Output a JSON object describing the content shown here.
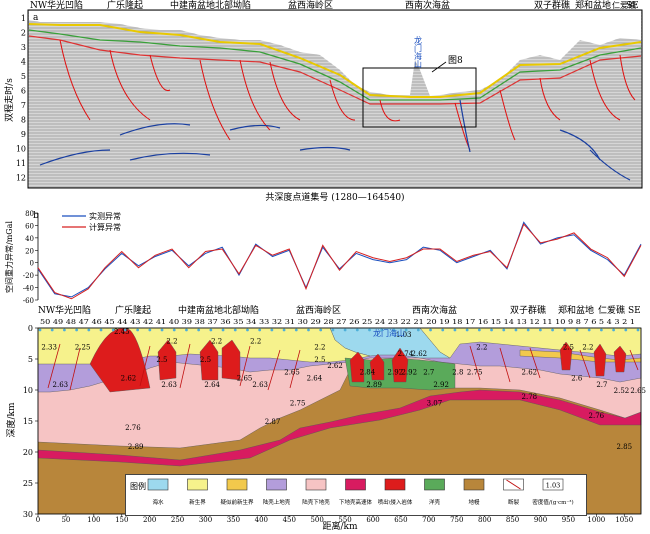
{
  "panel_a": {
    "label": "a",
    "title_nw": "NW",
    "title_se": "SE",
    "regions": [
      "华光凹陷",
      "广乐隆起",
      "中建南盆地北部坳陷",
      "盆西海岭区",
      "西南次海盆",
      "双子群礁",
      "郑和盆地",
      "仁爱礁"
    ],
    "ylabel": "双程走时/s",
    "yticks": [
      "1",
      "2",
      "3",
      "4",
      "5",
      "6",
      "7",
      "8",
      "9",
      "10",
      "11",
      "12"
    ],
    "xlabel": "共深度点道集号 (1280—164540)",
    "seamount_label": "龙门海山",
    "figure_ref": "图8"
  },
  "chart_data": [
    {
      "type": "line",
      "title": "",
      "xlabel": "",
      "ylabel": "空间重力异常/mGal",
      "ylim": [
        -60,
        80
      ],
      "yticks": [
        "80",
        "60",
        "40",
        "20",
        "0",
        "-20",
        "-40",
        "-60"
      ],
      "x": [
        0,
        30,
        60,
        90,
        120,
        150,
        180,
        210,
        240,
        270,
        300,
        330,
        360,
        390,
        420,
        450,
        480,
        510,
        540,
        570,
        600,
        630,
        660,
        690,
        720,
        750,
        780,
        810,
        840,
        870,
        900,
        930,
        960,
        990,
        1020,
        1050,
        1080
      ],
      "series": [
        {
          "name": "实测异常",
          "values": [
            -10,
            -50,
            -55,
            -40,
            -10,
            15,
            -5,
            10,
            20,
            -5,
            15,
            25,
            -20,
            30,
            10,
            20,
            -40,
            25,
            -10,
            15,
            5,
            0,
            5,
            25,
            20,
            0,
            10,
            20,
            -10,
            65,
            30,
            40,
            45,
            20,
            5,
            -20,
            30
          ]
        },
        {
          "name": "计算异常",
          "values": [
            -8,
            -48,
            -58,
            -42,
            -8,
            18,
            -8,
            12,
            22,
            -8,
            18,
            22,
            -18,
            28,
            12,
            22,
            -42,
            28,
            -12,
            18,
            8,
            2,
            8,
            22,
            22,
            2,
            12,
            18,
            -8,
            62,
            32,
            38,
            48,
            22,
            8,
            -22,
            28
          ]
        }
      ],
      "legend_position": "top-left"
    }
  ],
  "panel_b": {
    "label": "b",
    "title_nw": "NW",
    "title_se": "SE",
    "regions": [
      "华光凹陷",
      "广乐隆起",
      "中建南盆地北部坳陷",
      "盆西海岭区",
      "西南次海盆",
      "双子群礁",
      "郑和盆地",
      "仁爱礁"
    ],
    "station_numbers": "50 49 48 47 46 45 44 43 42 41 40 39 38 37 36 35 34 33 32 31 30 29 28 27 26 25 24 23 22 21 20   19       18       17 16 15 14 13 12 11 10 9 8 7 6 5 4 3 2 1",
    "ylabel": "深度/km",
    "yticks": [
      "0",
      "5",
      "10",
      "15",
      "20",
      "25",
      "30"
    ],
    "xlabel": "距离/km",
    "xticks": [
      "0",
      "50",
      "100",
      "150",
      "200",
      "250",
      "300",
      "350",
      "400",
      "450",
      "500",
      "550",
      "600",
      "650",
      "700",
      "750",
      "800",
      "850",
      "900",
      "950",
      "1000",
      "1050"
    ],
    "seamount_label": "龙门海山",
    "density_labels": [
      {
        "text": "2.33",
        "x": 20,
        "d": 3
      },
      {
        "text": "2.25",
        "x": 80,
        "d": 3
      },
      {
        "text": "2.45",
        "x": 150,
        "d": 0.5
      },
      {
        "text": "2.2",
        "x": 240,
        "d": 2
      },
      {
        "text": "2.2",
        "x": 320,
        "d": 2
      },
      {
        "text": "2.2",
        "x": 390,
        "d": 2
      },
      {
        "text": "2.2",
        "x": 505,
        "d": 3
      },
      {
        "text": "1.03",
        "x": 655,
        "d": 1
      },
      {
        "text": "2.2",
        "x": 795,
        "d": 3
      },
      {
        "text": "2.5",
        "x": 950,
        "d": 3
      },
      {
        "text": "2.2",
        "x": 985,
        "d": 3
      },
      {
        "text": "2.63",
        "x": 40,
        "d": 9
      },
      {
        "text": "2.62",
        "x": 162,
        "d": 8
      },
      {
        "text": "2.5",
        "x": 222,
        "d": 5
      },
      {
        "text": "2.63",
        "x": 235,
        "d": 9
      },
      {
        "text": "2.5",
        "x": 300,
        "d": 5
      },
      {
        "text": "2.64",
        "x": 312,
        "d": 9
      },
      {
        "text": "2.65",
        "x": 370,
        "d": 8
      },
      {
        "text": "2.63",
        "x": 398,
        "d": 9
      },
      {
        "text": "2.65",
        "x": 455,
        "d": 7
      },
      {
        "text": "2.64",
        "x": 495,
        "d": 8
      },
      {
        "text": "2.5",
        "x": 505,
        "d": 5
      },
      {
        "text": "2.62",
        "x": 532,
        "d": 6
      },
      {
        "text": "2.84",
        "x": 590,
        "d": 7
      },
      {
        "text": "2.89",
        "x": 602,
        "d": 9
      },
      {
        "text": "2.92",
        "x": 640,
        "d": 7
      },
      {
        "text": "2.74",
        "x": 658,
        "d": 4
      },
      {
        "text": "2.62",
        "x": 683,
        "d": 4
      },
      {
        "text": "2.92",
        "x": 665,
        "d": 7
      },
      {
        "text": "2.7",
        "x": 700,
        "d": 7
      },
      {
        "text": "2.92",
        "x": 722,
        "d": 9
      },
      {
        "text": "2.8",
        "x": 752,
        "d": 7
      },
      {
        "text": "2.75",
        "x": 782,
        "d": 7
      },
      {
        "text": "2.62",
        "x": 880,
        "d": 7
      },
      {
        "text": "2.6",
        "x": 965,
        "d": 8
      },
      {
        "text": "2.7",
        "x": 1010,
        "d": 9
      },
      {
        "text": "2.52",
        "x": 1045,
        "d": 10
      },
      {
        "text": "2.65",
        "x": 1075,
        "d": 10
      },
      {
        "text": "2.75",
        "x": 465,
        "d": 12
      },
      {
        "text": "2.87",
        "x": 420,
        "d": 15
      },
      {
        "text": "2.76",
        "x": 170,
        "d": 16
      },
      {
        "text": "2.89",
        "x": 175,
        "d": 19
      },
      {
        "text": "3.07",
        "x": 710,
        "d": 12
      },
      {
        "text": "2.78",
        "x": 880,
        "d": 11
      },
      {
        "text": "2.76",
        "x": 1000,
        "d": 14
      },
      {
        "text": "2.85",
        "x": 1050,
        "d": 19
      }
    ]
  },
  "legend": {
    "title": "图例",
    "items": [
      {
        "label": "海水",
        "color": "#9dd9ee"
      },
      {
        "label": "新生界",
        "color": "#f6f28c"
      },
      {
        "label": "疑似前新生界",
        "color": "#f2c94c"
      },
      {
        "label": "陆壳上地壳",
        "color": "#b39ddb"
      },
      {
        "label": "陆壳下地壳",
        "color": "#f6c4c4"
      },
      {
        "label": "下地壳高速体",
        "color": "#d81b60"
      },
      {
        "label": "喷出\\侵入岩体",
        "color": "#dd1c1c"
      },
      {
        "label": "洋壳",
        "color": "#5aaa5a"
      },
      {
        "label": "地幔",
        "color": "#b8863b"
      },
      {
        "label": "断裂",
        "color": "#ffffff"
      },
      {
        "label": "密度值/(g·cm⁻³)",
        "color": "#ffffff"
      }
    ],
    "density_example": "1.03"
  }
}
